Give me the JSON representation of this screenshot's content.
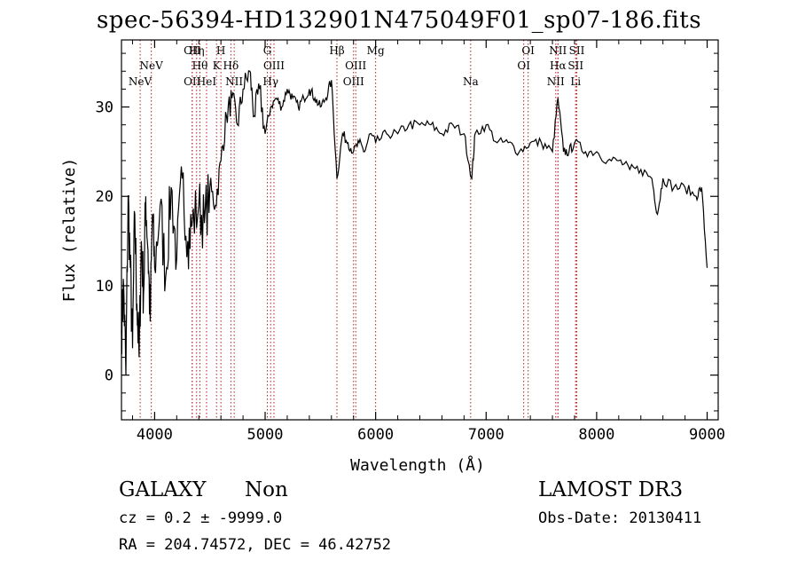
{
  "title": "spec-56394-HD132901N475049F01_sp07-186.fits",
  "footer": {
    "object_class": "GALAXY",
    "subclass": "Non",
    "survey": "LAMOST DR3",
    "redshift": "cz = 0.2 ± -9999.0",
    "obs_date": "Obs-Date: 20130411",
    "coords": "RA = 204.74572, DEC =  46.42752"
  },
  "chart_data": {
    "type": "line",
    "title": "spec-56394-HD132901N475049F01_sp07-186.fits",
    "xlabel": "Wavelength (Å)",
    "ylabel": "Flux (relative)",
    "xlim": [
      3700,
      9100
    ],
    "ylim": [
      -5,
      37.5
    ],
    "xticks": [
      4000,
      5000,
      6000,
      7000,
      8000,
      9000
    ],
    "yticks": [
      0,
      10,
      20,
      30
    ],
    "grid": false,
    "line_color": "#000000",
    "marker_color": "#b22222",
    "series": [
      {
        "x": [
          3700,
          3720,
          3740,
          3760,
          3780,
          3800,
          3820,
          3840,
          3860,
          3880,
          3900,
          3920,
          3940,
          3960,
          3980,
          4000,
          4050,
          4100,
          4150,
          4200,
          4250,
          4300,
          4340,
          4400,
          4450,
          4500,
          4550,
          4600,
          4650,
          4700,
          4750,
          4800,
          4861,
          4900,
          4950,
          5000,
          5050,
          5100,
          5150,
          5200,
          5250,
          5300,
          5350,
          5400,
          5450,
          5500,
          5550,
          5600,
          5650,
          5700,
          5750,
          5800,
          5850,
          5900,
          5950,
          6000,
          6100,
          6200,
          6300,
          6400,
          6500,
          6600,
          6700,
          6800,
          6870,
          6900,
          7000,
          7100,
          7200,
          7300,
          7400,
          7500,
          7600,
          7650,
          7700,
          7750,
          7800,
          7900,
          8000,
          8100,
          8200,
          8300,
          8400,
          8500,
          8550,
          8600,
          8700,
          8800,
          8900,
          8950,
          9000
        ],
        "y": [
          5,
          10,
          0,
          20,
          12,
          3,
          18,
          8,
          2,
          15,
          9,
          20,
          14,
          6,
          18,
          12,
          19,
          11,
          21,
          13,
          22,
          15,
          17,
          19,
          17,
          21,
          19,
          24,
          29,
          31,
          28,
          32,
          34,
          29,
          32,
          27,
          30,
          31,
          30,
          32,
          31,
          30,
          31,
          32,
          31,
          30,
          31,
          33,
          22,
          27,
          26,
          25,
          26,
          25,
          27,
          26,
          27,
          27,
          28,
          28,
          28,
          27,
          28,
          27,
          22,
          27,
          28,
          26,
          26,
          25,
          26,
          26,
          25,
          31,
          25,
          25,
          26,
          25,
          25,
          24,
          24,
          23,
          23,
          22,
          18,
          22,
          21,
          21,
          20,
          21,
          12
        ]
      }
    ],
    "line_markers": [
      {
        "label": "NeV",
        "x": 3869,
        "row": 3
      },
      {
        "label": "NeV",
        "x": 3970,
        "row": 2
      },
      {
        "label": "OII",
        "x": 4340,
        "row": 1
      },
      {
        "label": "Hη",
        "x": 4380,
        "row": 1
      },
      {
        "label": "H",
        "x": 4600,
        "row": 1
      },
      {
        "label": "Hθ",
        "x": 4410,
        "row": 2
      },
      {
        "label": "K",
        "x": 4560,
        "row": 2
      },
      {
        "label": "OII",
        "x": 4340,
        "row": 3
      },
      {
        "label": "HeI",
        "x": 4470,
        "row": 3
      },
      {
        "label": "Hδ",
        "x": 4690,
        "row": 2
      },
      {
        "label": "NII",
        "x": 4720,
        "row": 3
      },
      {
        "label": "G",
        "x": 5020,
        "row": 1
      },
      {
        "label": "OIII",
        "x": 5080,
        "row": 2
      },
      {
        "label": "Hγ",
        "x": 5050,
        "row": 3
      },
      {
        "label": "Hβ",
        "x": 5650,
        "row": 1
      },
      {
        "label": "OIII",
        "x": 5820,
        "row": 2
      },
      {
        "label": "OIII",
        "x": 5800,
        "row": 3
      },
      {
        "label": "Mg",
        "x": 6000,
        "row": 1
      },
      {
        "label": "Na",
        "x": 6860,
        "row": 3
      },
      {
        "label": "OI",
        "x": 7380,
        "row": 1
      },
      {
        "label": "OI",
        "x": 7340,
        "row": 2
      },
      {
        "label": "NII",
        "x": 7650,
        "row": 1
      },
      {
        "label": "SII",
        "x": 7820,
        "row": 1
      },
      {
        "label": "Hα",
        "x": 7650,
        "row": 2
      },
      {
        "label": "SII",
        "x": 7810,
        "row": 2
      },
      {
        "label": "NII",
        "x": 7630,
        "row": 3
      },
      {
        "label": "Li",
        "x": 7810,
        "row": 3
      }
    ]
  }
}
